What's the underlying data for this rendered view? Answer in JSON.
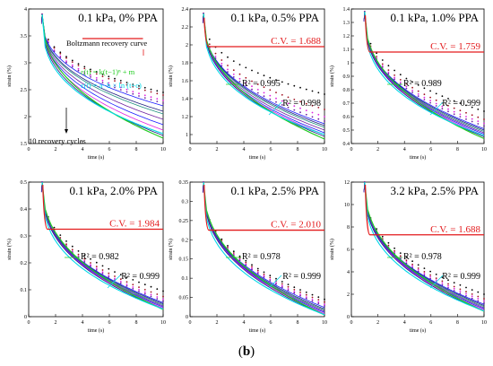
{
  "caption": "(b)",
  "colors": {
    "black": "#000000",
    "red": "#e31a1c",
    "green": "#22cc22",
    "cyan": "#00d8e8",
    "blue": "#1a1aff",
    "magenta": "#e020e0",
    "purple": "#7020a0",
    "navy": "#202080",
    "teal": "#209080",
    "darkred": "#a01020"
  },
  "chart_data": [
    {
      "type": "line",
      "title": "0.1 kPa, 0% PPA",
      "xlabel": "time (s)",
      "ylabel": "strain (%)",
      "xlim": [
        0,
        10
      ],
      "ylim": [
        1.5,
        4
      ],
      "xticks": [
        "0",
        "2",
        "4",
        "6",
        "8",
        "10"
      ],
      "yticks": [
        "1.5",
        "2",
        "2.5",
        "3",
        "3.5",
        "4"
      ],
      "ytick_values": [
        1.5,
        2,
        2.5,
        3,
        3.5,
        4
      ],
      "peak": 3.9,
      "final_values": [
        2.45,
        2.4,
        2.3,
        2.25,
        2.2,
        2.1,
        2.05,
        1.95,
        1.85,
        1.75,
        1.65
      ],
      "cv_level": 3.45,
      "cv_x": [
        4,
        8.5
      ],
      "annotations": [
        "Boltzmann recovery curve",
        "ε(t) = k(t−1)ⁿ + m",
        "ε(t) = a−b × ln (t+c)",
        "10 recovery cycles"
      ],
      "cv_label": "",
      "r2_green": "",
      "r2_cyan": ""
    },
    {
      "type": "line",
      "title": "0.1 kPa, 0.5% PPA",
      "xlabel": "time (s)",
      "ylabel": "strain (%)",
      "xlim": [
        0,
        10
      ],
      "ylim": [
        0.9,
        2.4
      ],
      "xticks": [
        "0",
        "2",
        "4",
        "6",
        "8",
        "10"
      ],
      "yticks": [
        "1",
        "1.2",
        "1.4",
        "1.6",
        "1.8",
        "2",
        "2.2",
        "2.4"
      ],
      "ytick_values": [
        1,
        1.2,
        1.4,
        1.6,
        1.8,
        2,
        2.2,
        2.4
      ],
      "peak": 2.35,
      "final_values": [
        1.45,
        1.28,
        1.2,
        1.15,
        1.12,
        1.1,
        1.08,
        1.05,
        1.02,
        1.0,
        0.98
      ],
      "cv_level": 1.98,
      "cv_x": [
        1.3,
        10
      ],
      "cv_label": "C.V. = 1.688",
      "r2_green": "R² = 0.995",
      "r2_cyan": "R² = 0.998",
      "annotations": []
    },
    {
      "type": "line",
      "title": "0.1 kPa, 1.0% PPA",
      "xlabel": "time (s)",
      "ylabel": "strain (%)",
      "xlim": [
        0,
        10
      ],
      "ylim": [
        0.4,
        1.4
      ],
      "xticks": [
        "0",
        "2",
        "4",
        "6",
        "8",
        "10"
      ],
      "yticks": [
        "0.4",
        "0.5",
        "0.6",
        "0.7",
        "0.8",
        "0.9",
        "1",
        "1.1",
        "1.2",
        "1.3",
        "1.4"
      ],
      "ytick_values": [
        0.4,
        0.5,
        0.6,
        0.7,
        0.8,
        0.9,
        1,
        1.1,
        1.2,
        1.3,
        1.4
      ],
      "peak": 1.38,
      "final_values": [
        0.64,
        0.58,
        0.55,
        0.53,
        0.51,
        0.5,
        0.49,
        0.48,
        0.47,
        0.46,
        0.45
      ],
      "cv_level": 1.08,
      "cv_x": [
        1.3,
        10
      ],
      "cv_label": "C.V. = 1.759",
      "r2_green": "R² = 0.989",
      "r2_cyan": "R² = 0.999",
      "annotations": []
    },
    {
      "type": "line",
      "title": "0.1 kPa, 2.0% PPA",
      "xlabel": "time (s)",
      "ylabel": "strain (%)",
      "xlim": [
        0,
        10
      ],
      "ylim": [
        0,
        0.5
      ],
      "xticks": [
        "0",
        "2",
        "4",
        "6",
        "8",
        "10"
      ],
      "yticks": [
        "0",
        "0.1",
        "0.2",
        "0.3",
        "0.4",
        "0.5"
      ],
      "ytick_values": [
        0,
        0.1,
        0.2,
        0.3,
        0.4,
        0.5
      ],
      "peak": 0.5,
      "final_values": [
        0.095,
        0.075,
        0.065,
        0.058,
        0.052,
        0.048,
        0.044,
        0.04,
        0.036,
        0.032,
        0.028
      ],
      "cv_level": 0.325,
      "cv_x": [
        1.3,
        10
      ],
      "cv_label": "C.V. = 1.984",
      "r2_green": "R² = 0.982",
      "r2_cyan": "R² = 0.999",
      "annotations": []
    },
    {
      "type": "line",
      "title": "0.1 kPa, 2.5% PPA",
      "xlabel": "time (s)",
      "ylabel": "strain (%)",
      "xlim": [
        0,
        10
      ],
      "ylim": [
        0,
        0.35
      ],
      "xticks": [
        "0",
        "2",
        "4",
        "6",
        "8",
        "10"
      ],
      "yticks": [
        "0",
        "0.05",
        "0.1",
        "0.15",
        "0.2",
        "0.25",
        "0.3",
        "0.35"
      ],
      "ytick_values": [
        0,
        0.05,
        0.1,
        0.15,
        0.2,
        0.25,
        0.3,
        0.35
      ],
      "peak": 0.35,
      "final_values": [
        0.045,
        0.038,
        0.032,
        0.028,
        0.024,
        0.02,
        0.017,
        0.014,
        0.011,
        0.008,
        0.005
      ],
      "cv_level": 0.225,
      "cv_x": [
        1.3,
        10
      ],
      "cv_label": "C.V. = 2.010",
      "r2_green": "R² = 0.978",
      "r2_cyan": "R² = 0.999",
      "annotations": []
    },
    {
      "type": "line",
      "title": "3.2 kPa, 2.5% PPA",
      "xlabel": "time (s)",
      "ylabel": "strain (%)",
      "xlim": [
        0,
        10
      ],
      "ylim": [
        0,
        12
      ],
      "xticks": [
        "0",
        "2",
        "4",
        "6",
        "8",
        "10"
      ],
      "yticks": [
        "0",
        "2",
        "4",
        "6",
        "8",
        "10",
        "12"
      ],
      "ytick_values": [
        0,
        2,
        4,
        6,
        8,
        10,
        12
      ],
      "peak": 12,
      "final_values": [
        2.0,
        1.6,
        1.4,
        1.2,
        1.1,
        1.0,
        0.9,
        0.8,
        0.7,
        0.6,
        0.5
      ],
      "cv_level": 7.3,
      "cv_x": [
        1.3,
        10
      ],
      "cv_label": "C.V. = 1.688",
      "r2_green": "R² = 0.978",
      "r2_cyan": "R² = 0.999",
      "annotations": []
    }
  ]
}
